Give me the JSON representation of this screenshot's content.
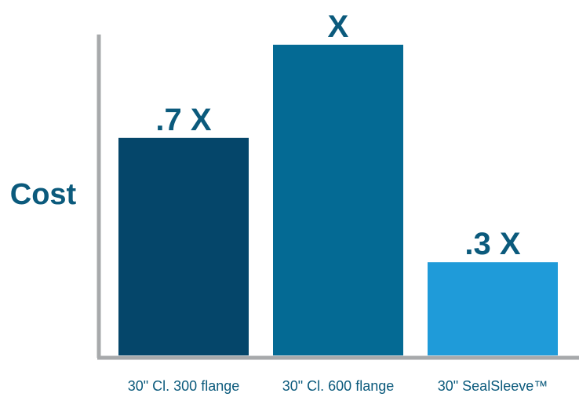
{
  "chart_data": {
    "type": "bar",
    "title": "",
    "xlabel": "",
    "ylabel": "Cost",
    "categories": [
      "30\" Cl. 300 flange",
      "30\" Cl. 600 flange",
      "30\" SealSleeve™"
    ],
    "values": [
      0.7,
      1.0,
      0.3
    ],
    "data_labels": [
      ".7 X",
      "X",
      ".3 X"
    ],
    "colors": [
      "#05466a",
      "#046a94",
      "#1f9bd9"
    ],
    "ylim": [
      0,
      1.1
    ],
    "grid": false,
    "legend": "none"
  }
}
